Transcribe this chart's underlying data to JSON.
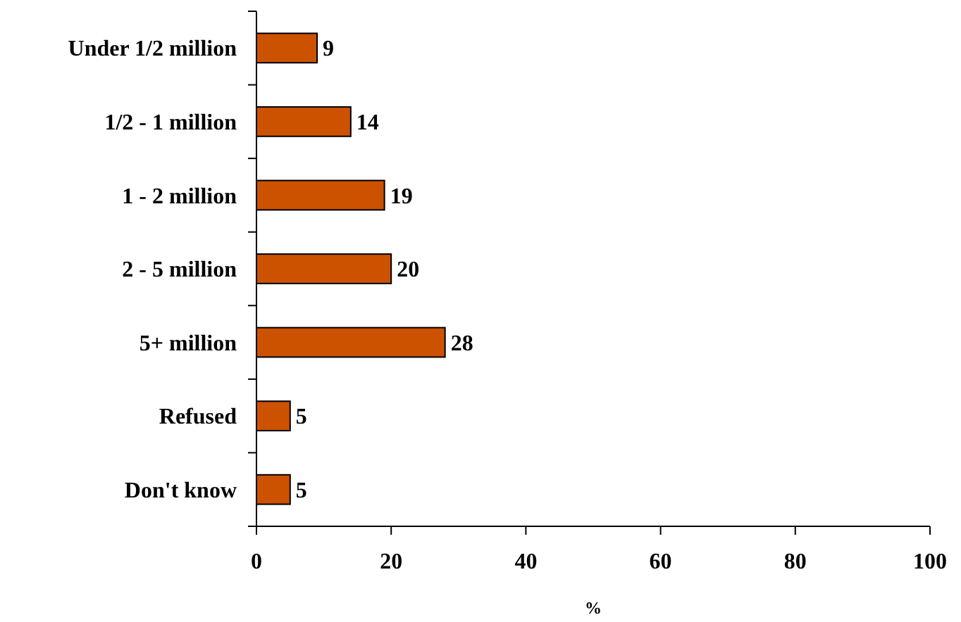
{
  "chart_data": {
    "type": "bar",
    "orientation": "horizontal",
    "xlabel": "%",
    "categories": [
      "Under 1/2 million",
      "1/2 - 1 million",
      "1 - 2 million",
      "2 - 5 million",
      "5+ million",
      "Refused",
      "Don't know"
    ],
    "values": [
      9,
      14,
      19,
      20,
      28,
      5,
      5
    ],
    "color": "#cc5200",
    "data_labels": true,
    "xlim": [
      0,
      100
    ],
    "xticks": [
      0,
      20,
      40,
      60,
      80,
      100
    ]
  }
}
